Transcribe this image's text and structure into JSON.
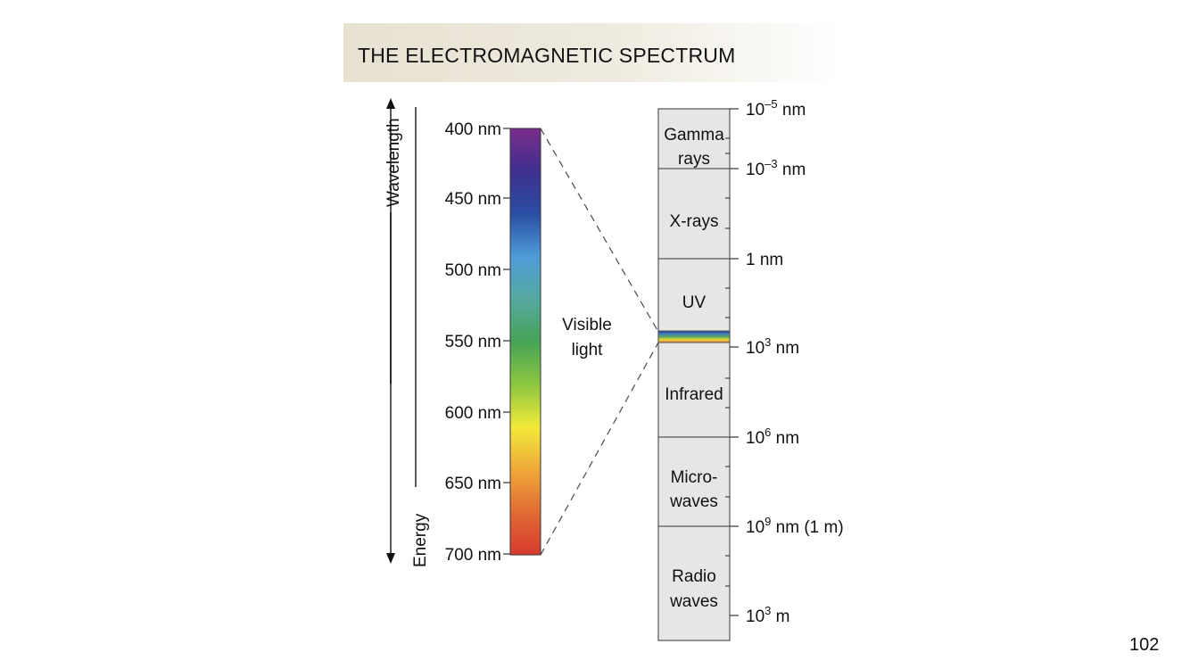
{
  "title": "THE ELECTROMAGNETIC SPECTRUM",
  "page_number": "102",
  "axes": {
    "wavelength_label": "Wavelength",
    "energy_label": "Energy"
  },
  "visible": {
    "label_line1": "Visible",
    "label_line2": "light",
    "ticks": [
      "400 nm",
      "450 nm",
      "500 nm",
      "550 nm",
      "600 nm",
      "650 nm",
      "700 nm"
    ],
    "gradient_colors": [
      "#7a2d8c",
      "#3f2f8e",
      "#2a4ea3",
      "#4f9bd8",
      "#55a9a0",
      "#46a356",
      "#8cc640",
      "#f2ea3a",
      "#f0a93a",
      "#e06b34",
      "#d73a2f"
    ]
  },
  "spectrum": {
    "bands": [
      {
        "line1": "Gamma",
        "line2": "rays"
      },
      {
        "line1": "X-rays",
        "line2": ""
      },
      {
        "line1": "UV",
        "line2": ""
      },
      {
        "line1": "Infrared",
        "line2": ""
      },
      {
        "line1": "Micro-",
        "line2": "waves"
      },
      {
        "line1": "Radio",
        "line2": "waves"
      }
    ],
    "scale": [
      {
        "base": "10",
        "exp": "–5",
        "unit": " nm"
      },
      {
        "base": "10",
        "exp": "–3",
        "unit": " nm"
      },
      {
        "base": "1 nm",
        "exp": "",
        "unit": ""
      },
      {
        "base": "10",
        "exp": "3",
        "unit": " nm"
      },
      {
        "base": "10",
        "exp": "6",
        "unit": " nm"
      },
      {
        "base": "10",
        "exp": "9",
        "unit": " nm (1 m)"
      },
      {
        "base": "10",
        "exp": "3",
        "unit": " m"
      }
    ],
    "visible_strip_colors": [
      "#2b2f8a",
      "#3f7fc2",
      "#57a55a",
      "#e8d83a",
      "#e07a32"
    ]
  },
  "colors": {
    "band_fill": "#e6e6e6",
    "band_stroke": "#555555",
    "dashed": "#555555"
  }
}
